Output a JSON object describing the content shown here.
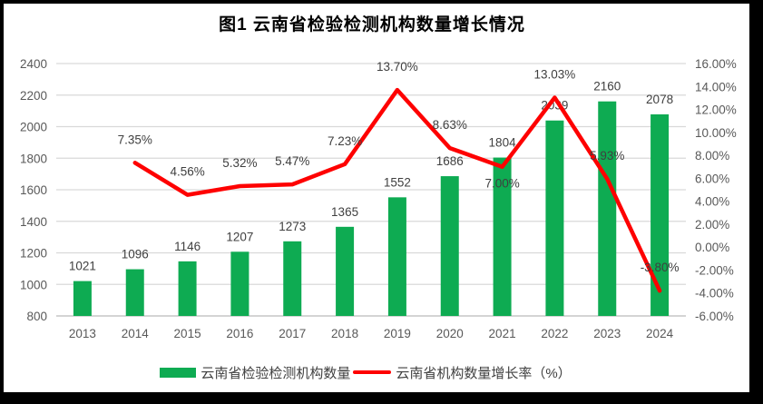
{
  "title": "图1 云南省检验检测机构数量增长情况",
  "colors": {
    "background": "#ffffff",
    "frame": "#000000",
    "bar": "#0eab52",
    "line": "#fe0000",
    "grid": "#d9d9d9",
    "axis_line": "#bfbfbf",
    "axis_text": "#595959",
    "data_label_text": "#3f3f3f",
    "title_text": "#000000"
  },
  "chart_data": {
    "type": "bar+line combo",
    "title": "图1 云南省检验检测机构数量增长情况",
    "categories": [
      "2013",
      "2014",
      "2015",
      "2016",
      "2017",
      "2018",
      "2019",
      "2020",
      "2021",
      "2022",
      "2023",
      "2024"
    ],
    "series": [
      {
        "name": "云南省检验检测机构数量",
        "type": "bar",
        "axis": "left",
        "color": "#0eab52",
        "values": [
          1021,
          1096,
          1146,
          1207,
          1273,
          1365,
          1552,
          1686,
          1804,
          2039,
          2160,
          2078
        ],
        "labels": [
          "1021",
          "1096",
          "1146",
          "1207",
          "1273",
          "1365",
          "1552",
          "1686",
          "1804",
          "2039",
          "2160",
          "2078"
        ]
      },
      {
        "name": "云南省机构数量增长率（%）",
        "type": "line",
        "axis": "right",
        "color": "#fe0000",
        "values": [
          null,
          7.35,
          4.56,
          5.32,
          5.47,
          7.23,
          13.7,
          8.63,
          7.0,
          13.03,
          5.93,
          -3.8
        ],
        "labels": [
          null,
          "7.35%",
          "4.56%",
          "5.32%",
          "5.47%",
          "7.23%",
          "13.70%",
          "8.63%",
          "7.00%",
          "13.03%",
          "5.93%",
          "-3.80%"
        ],
        "label_positions": [
          null,
          "above",
          "above",
          "above",
          "above",
          "above",
          "above",
          "above",
          "below",
          "above",
          "above",
          "above"
        ]
      }
    ],
    "left_axis": {
      "min": 800,
      "max": 2400,
      "step": 200,
      "ticks": [
        "800",
        "1000",
        "1200",
        "1400",
        "1600",
        "1800",
        "2000",
        "2200",
        "2400"
      ]
    },
    "right_axis": {
      "min": -6,
      "max": 16,
      "step": 2,
      "ticks": [
        "16.00%",
        "14.00%",
        "12.00%",
        "10.00%",
        "8.00%",
        "6.00%",
        "4.00%",
        "2.00%",
        "0.00%",
        "-2.00%",
        "-4.00%",
        "-6.00%"
      ]
    },
    "grid": true,
    "legend_position": "bottom"
  },
  "legend": {
    "items": [
      {
        "label": "云南省检验检测机构数量",
        "swatch": "bar"
      },
      {
        "label": "云南省机构数量增长率（%）",
        "swatch": "line"
      }
    ]
  }
}
